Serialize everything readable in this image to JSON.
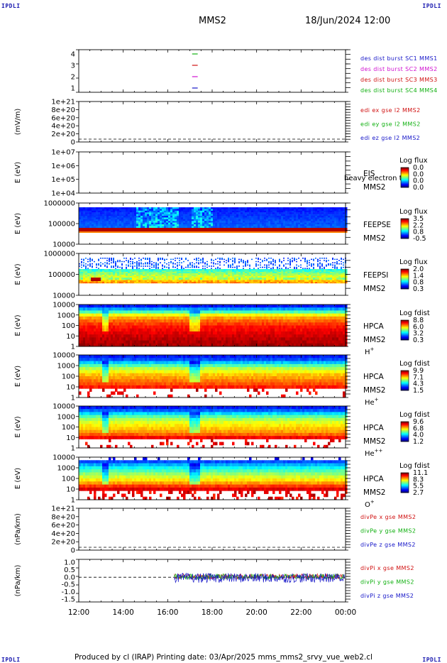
{
  "corners": {
    "tl": "IPDLI",
    "tr": "IPDLI",
    "bl": "IPDLI",
    "br": "IPDLI"
  },
  "header": {
    "spacecraft": "MMS2",
    "datetime": "18/Jun/2024 12:00"
  },
  "footer": "Produced by cl (IRAP)   Printing date: 03/Apr/2025   mms_mms2_srvy_vue_web2.cl",
  "colors": {
    "blue": "#1515c8",
    "red": "#d01010",
    "green": "#10b010",
    "magenta": "#d010d0"
  },
  "chart_data": {
    "type": "heatmap",
    "x_axis": {
      "ticks": [
        "12:00",
        "14:00",
        "16:00",
        "18:00",
        "20:00",
        "22:00",
        "00:00"
      ]
    },
    "panels": [
      {
        "id": "dist-burst",
        "type": "line",
        "yticks": [
          "4",
          "3",
          "2",
          "1"
        ],
        "ylabel": "",
        "legend": [
          {
            "text": "des dist burst SC1 MMS1",
            "color": "blue"
          },
          {
            "text": "des dist burst SC2 MMS2",
            "color": "magenta"
          },
          {
            "text": "des dist burst SC3 MMS3",
            "color": "red"
          },
          {
            "text": "des dist burst SC4 MMS4",
            "color": "green"
          }
        ],
        "series": [
          {
            "y": 4,
            "t_start": 17.1,
            "t_end": 17.35,
            "color": "green"
          },
          {
            "y": 3,
            "t_start": 17.1,
            "t_end": 17.35,
            "color": "red"
          },
          {
            "y": 2,
            "t_start": 17.1,
            "t_end": 17.35,
            "color": "magenta"
          },
          {
            "y": 1,
            "t_start": 17.1,
            "t_end": 17.35,
            "color": "blue"
          }
        ]
      },
      {
        "id": "edi-e",
        "type": "line",
        "yticks": [
          "1e+21",
          "8e+20",
          "6e+20",
          "4e+20",
          "2e+20",
          "0"
        ],
        "ylabel": "(mV/m)",
        "legend": [
          {
            "text": "edi ex gse l2 MMS2",
            "color": "red"
          },
          {
            "text": "edi ey gse l2 MMS2",
            "color": "green"
          },
          {
            "text": "edi ez gse l2 MMS2",
            "color": "blue"
          }
        ]
      },
      {
        "id": "eis",
        "type": "heatmap",
        "yticks": [
          "1e+07",
          "1e+06",
          "1e+05",
          "1e+04"
        ],
        "ylabel": "E (eV)",
        "labels": [
          "EIS",
          "heavy electron to",
          "MMS2"
        ],
        "cbar_title": "Log flux",
        "cbar_ticks": [
          "0.0",
          "0.0",
          "0.0",
          "0.0"
        ]
      },
      {
        "id": "feeps-e",
        "type": "heatmap",
        "yticks": [
          "1000000",
          "100000",
          "10000"
        ],
        "ylabel": "E (eV)",
        "labels": [
          "FEEPSE",
          "MMS2"
        ],
        "cbar_title": "Log flux",
        "cbar_ticks": [
          "3.5",
          "2.2",
          "0.8",
          "-0.5"
        ]
      },
      {
        "id": "feeps-i",
        "type": "heatmap",
        "yticks": [
          "1000000",
          "100000",
          "10000"
        ],
        "ylabel": "E (eV)",
        "labels": [
          "FEEPSI",
          "MMS2"
        ],
        "cbar_title": "Log flux",
        "cbar_ticks": [
          "2.0",
          "1.4",
          "0.8",
          "0.3"
        ]
      },
      {
        "id": "hpca-h",
        "type": "heatmap",
        "yticks": [
          "10000",
          "1000",
          "100",
          "10",
          "1"
        ],
        "ylabel": "E (eV)",
        "labels": [
          "HPCA",
          "MMS2",
          "H+"
        ],
        "cbar_title": "Log fdist",
        "cbar_ticks": [
          "8.8",
          "6.0",
          "3.2",
          "0.3"
        ]
      },
      {
        "id": "hpca-he",
        "type": "heatmap",
        "yticks": [
          "10000",
          "1000",
          "100",
          "10",
          "1"
        ],
        "ylabel": "E (eV)",
        "labels": [
          "HPCA",
          "MMS2",
          "He+"
        ],
        "cbar_title": "Log fdist",
        "cbar_ticks": [
          "9.9",
          "7.1",
          "4.3",
          "1.5"
        ]
      },
      {
        "id": "hpca-he2",
        "type": "heatmap",
        "yticks": [
          "10000",
          "1000",
          "100",
          "10",
          "1"
        ],
        "ylabel": "E (eV)",
        "labels": [
          "HPCA",
          "MMS2",
          "He++"
        ],
        "cbar_title": "Log fdist",
        "cbar_ticks": [
          "9.6",
          "6.8",
          "4.0",
          "1.2"
        ]
      },
      {
        "id": "hpca-o",
        "type": "heatmap",
        "yticks": [
          "10000",
          "1000",
          "100",
          "10",
          "1"
        ],
        "ylabel": "E (eV)",
        "labels": [
          "HPCA",
          "MMS2",
          "O+"
        ],
        "cbar_title": "Log fdist",
        "cbar_ticks": [
          "11.1",
          "8.3",
          "5.5",
          "2.7"
        ]
      },
      {
        "id": "divpe",
        "type": "line",
        "yticks": [
          "1e+21",
          "8e+20",
          "6e+20",
          "4e+20",
          "2e+20",
          "0"
        ],
        "ylabel": "(nPa/km)",
        "legend": [
          {
            "text": "divPe x gse MMS2",
            "color": "red"
          },
          {
            "text": "divPe y gse MMS2",
            "color": "green"
          },
          {
            "text": "divPe z gse MMS2",
            "color": "blue"
          }
        ]
      },
      {
        "id": "divpi",
        "type": "line",
        "yticks": [
          "1.0",
          "0.5",
          "0.0",
          "-0.5",
          "-1.0",
          "-1.5"
        ],
        "ylabel": "(nPa/km)",
        "legend": [
          {
            "text": "divPi x gse MMS2",
            "color": "red"
          },
          {
            "text": "divPi y gse MMS2",
            "color": "green"
          },
          {
            "text": "divPi z gse MMS2",
            "color": "blue"
          }
        ],
        "data_start_hour": 16.3,
        "ylim": [
          -1.5,
          1.0
        ]
      }
    ]
  }
}
